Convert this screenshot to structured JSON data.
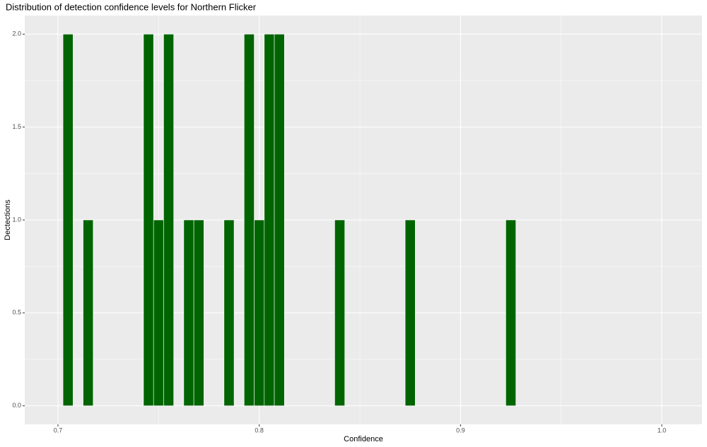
{
  "chart_data": {
    "type": "histogram",
    "title": "Distribution of detection confidence levels for Northern Flicker",
    "x_label": "Confidence",
    "y_label": "Dectections",
    "bins": [
      0.7025,
      0.7075,
      0.7125,
      0.7175,
      0.7225,
      0.7275,
      0.7325,
      0.7375,
      0.7425,
      0.7475,
      0.7525,
      0.7575,
      0.7625,
      0.7675,
      0.7725,
      0.7775,
      0.7825,
      0.7875,
      0.7925,
      0.7975,
      0.8025,
      0.8075,
      0.8125,
      0.8175,
      0.8225,
      0.8275,
      0.8325,
      0.8375,
      0.8425,
      0.8475,
      0.8525,
      0.8575,
      0.8625,
      0.8675,
      0.8725,
      0.8775,
      0.8825,
      0.8875,
      0.8925,
      0.8975,
      0.9025,
      0.9075,
      0.9125,
      0.9175,
      0.9225,
      0.9275
    ],
    "values": [
      2,
      0,
      1,
      0,
      0,
      0,
      0,
      0,
      2,
      1,
      2,
      0,
      1,
      1,
      0,
      0,
      1,
      0,
      2,
      1,
      2,
      2,
      0,
      0,
      0,
      0,
      0,
      1,
      0,
      0,
      0,
      0,
      0,
      0,
      1,
      0,
      0,
      0,
      0,
      0,
      0,
      0,
      0,
      0,
      1
    ],
    "color": "#006400",
    "xlim": [
      0.6835,
      1.02
    ],
    "xticks": [
      0.7,
      0.8,
      0.9,
      {
        "value": 1,
        "label": "1.0"
      }
    ],
    "ylim": [
      -0.1,
      2.1
    ],
    "yticks": [
      {
        "value": 0,
        "label": "0.0"
      },
      0.5,
      {
        "value": 1,
        "label": "1.0"
      },
      1.5,
      {
        "value": 2,
        "label": "2.0"
      }
    ],
    "grid": true
  }
}
